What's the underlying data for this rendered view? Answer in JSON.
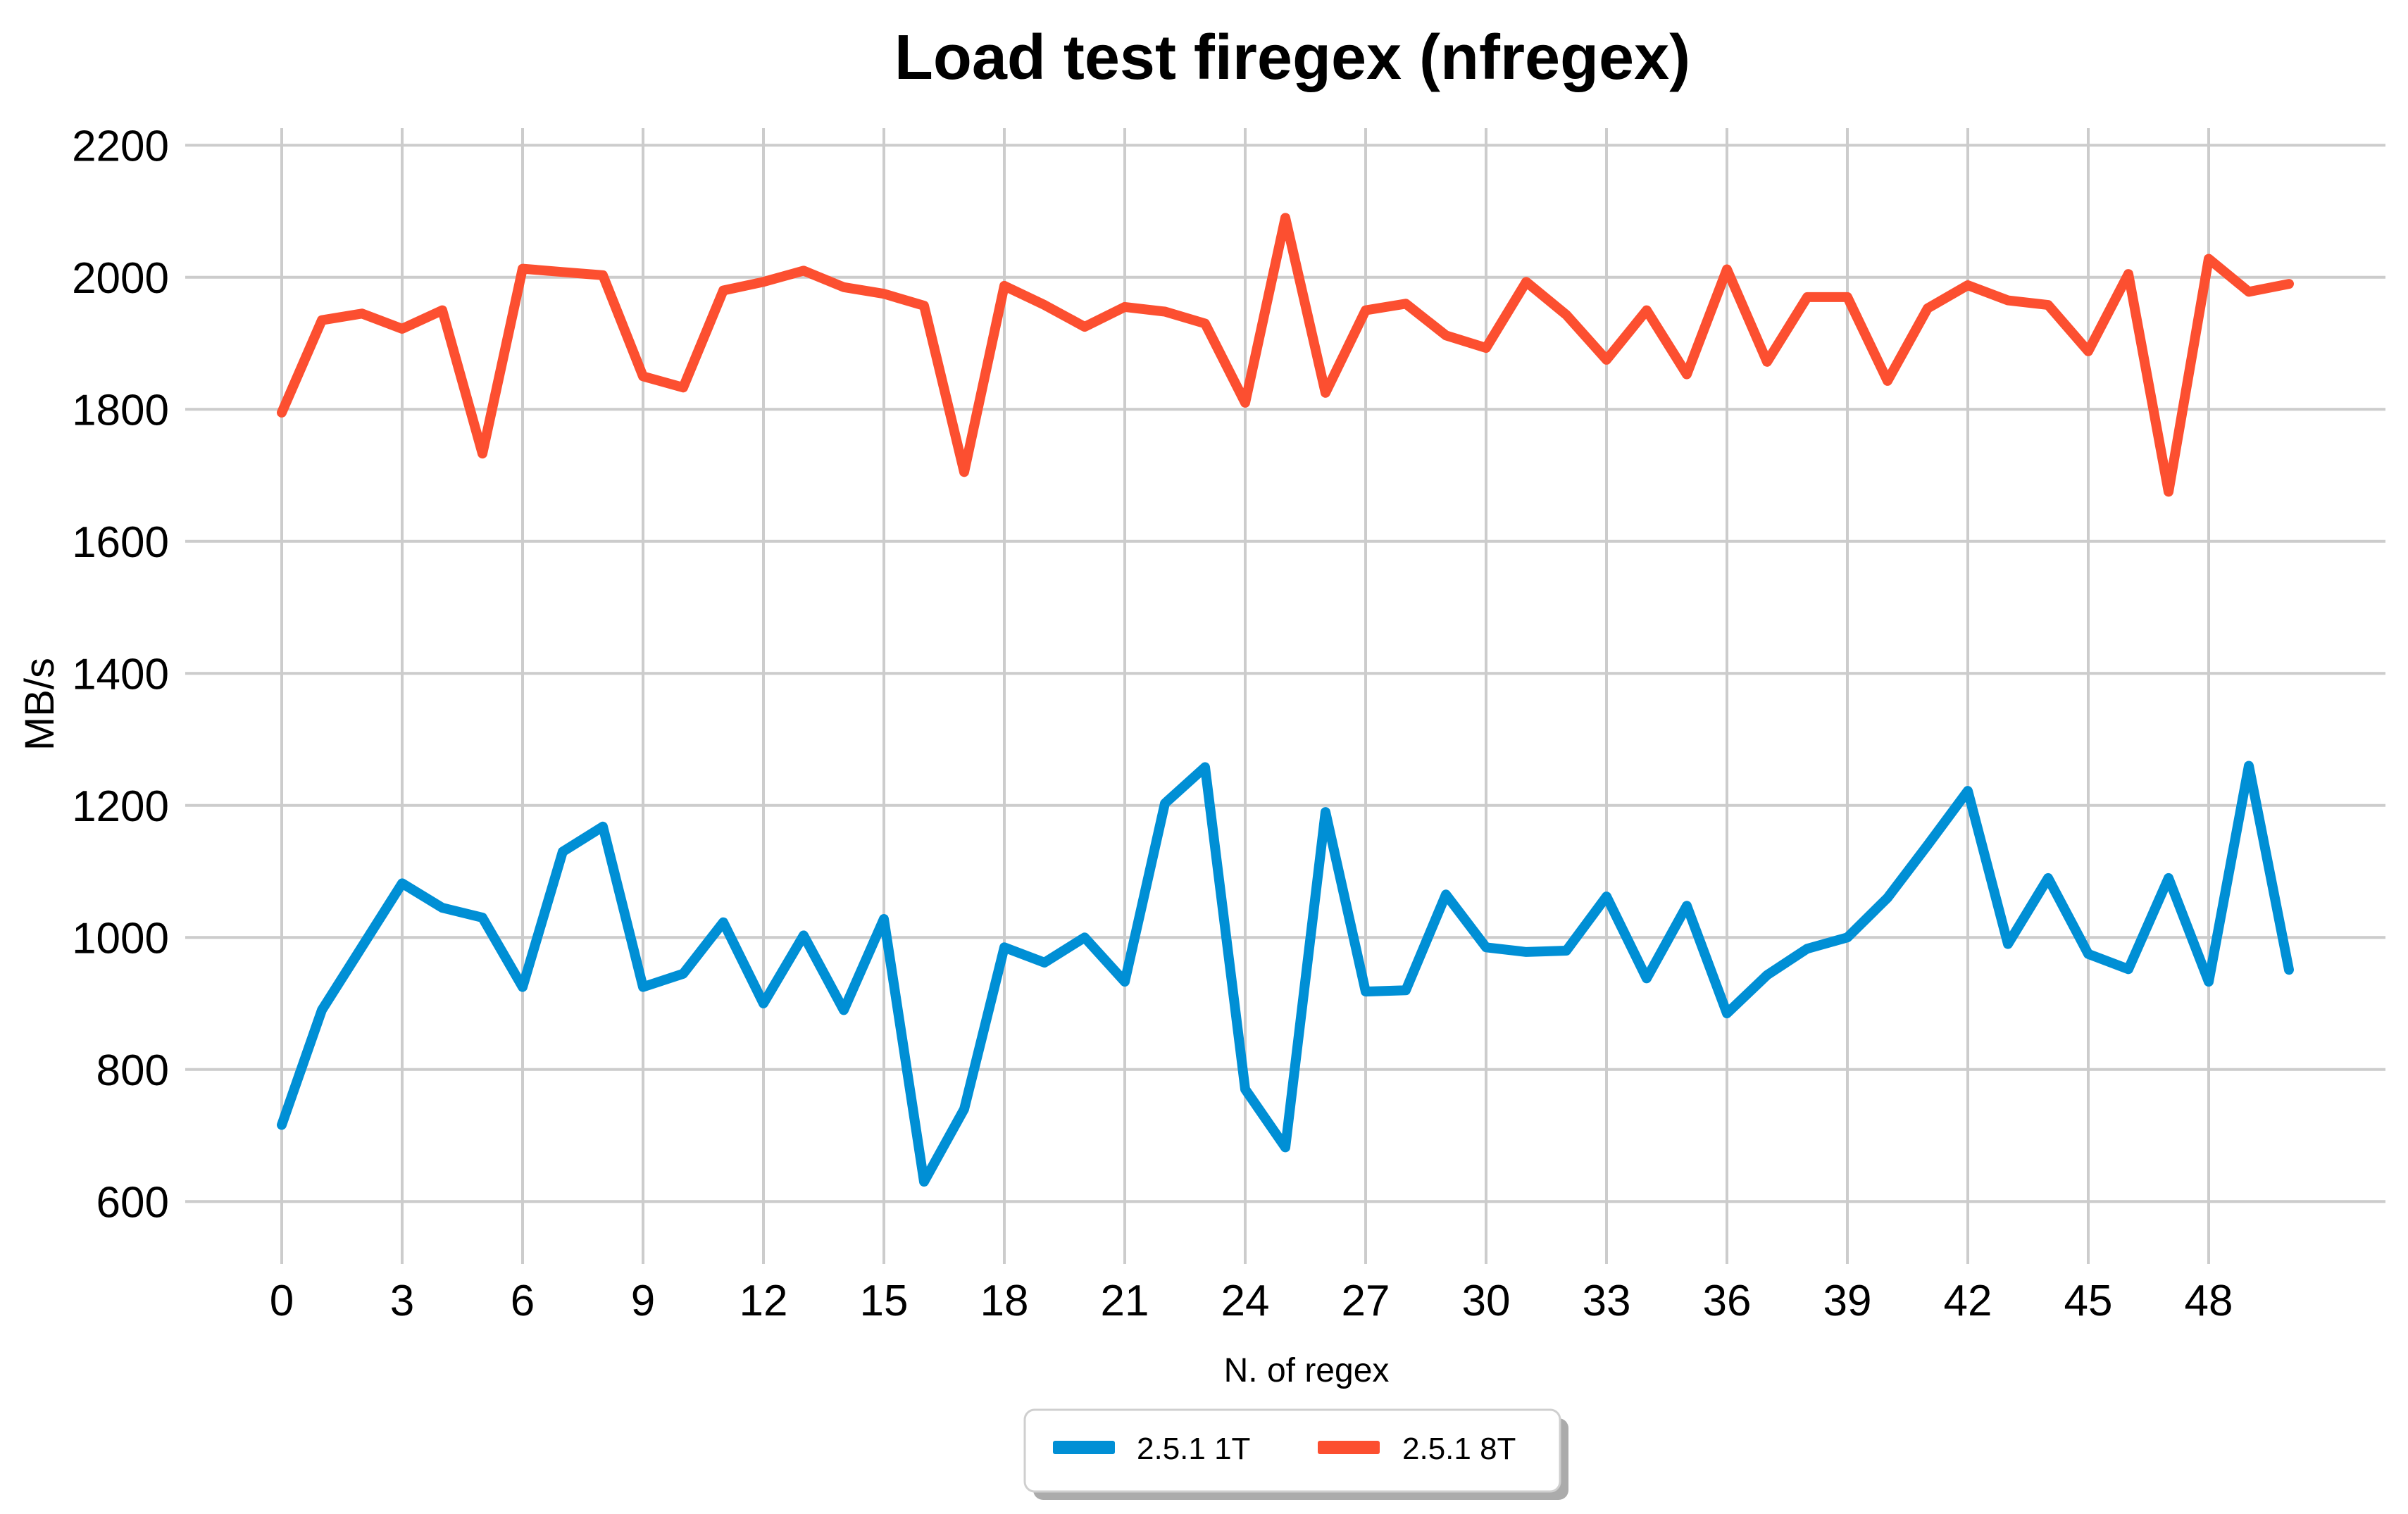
{
  "chart_data": {
    "type": "line",
    "title": "Load test firegex (nfregex)",
    "xlabel": "N. of regex",
    "ylabel": "MB/s",
    "x_start": 0,
    "x_step": 1,
    "x_ticks": [
      0,
      3,
      6,
      9,
      12,
      15,
      18,
      21,
      24,
      27,
      30,
      33,
      36,
      39,
      42,
      45,
      48
    ],
    "y_ticks": [
      600,
      800,
      1000,
      1200,
      1400,
      1600,
      1800,
      2000,
      2200
    ],
    "ylim": [
      600,
      2200
    ],
    "xlim": [
      0,
      50
    ],
    "grid": true,
    "legend_position": "bottom-center",
    "series": [
      {
        "name": "2.5.1 1T",
        "color": "#008fd5",
        "values": [
          716,
          890,
          986,
          1082,
          1045,
          1030,
          925,
          1130,
          1168,
          925,
          945,
          1023,
          900,
          1003,
          890,
          1028,
          630,
          740,
          985,
          962,
          1000,
          933,
          1203,
          1258,
          770,
          682,
          1190,
          918,
          920,
          1065,
          985,
          978,
          980,
          1062,
          938,
          1048,
          885,
          943,
          983,
          1000,
          1060,
          1140,
          1222,
          990,
          1090,
          975,
          952,
          1090,
          933,
          1260,
          951
        ]
      },
      {
        "name": "2.5.1 8T",
        "color": "#fc4f30",
        "values": [
          1795,
          1935,
          1945,
          1922,
          1950,
          1733,
          2013,
          2008,
          2003,
          1850,
          1833,
          1980,
          1993,
          2010,
          1985,
          1975,
          1957,
          1705,
          1987,
          1958,
          1925,
          1955,
          1948,
          1930,
          1810,
          2090,
          1825,
          1950,
          1960,
          1912,
          1893,
          1993,
          1943,
          1875,
          1950,
          1853,
          2012,
          1872,
          1970,
          1970,
          1843,
          1953,
          1988,
          1965,
          1958,
          1888,
          2005,
          1675,
          2028,
          1978,
          1990
        ]
      }
    ]
  },
  "colors": {
    "background": "#ffffff",
    "grid": "#cccccc",
    "text": "#000000",
    "legend_border": "#cfcfcf",
    "legend_shadow": "#ababab"
  }
}
